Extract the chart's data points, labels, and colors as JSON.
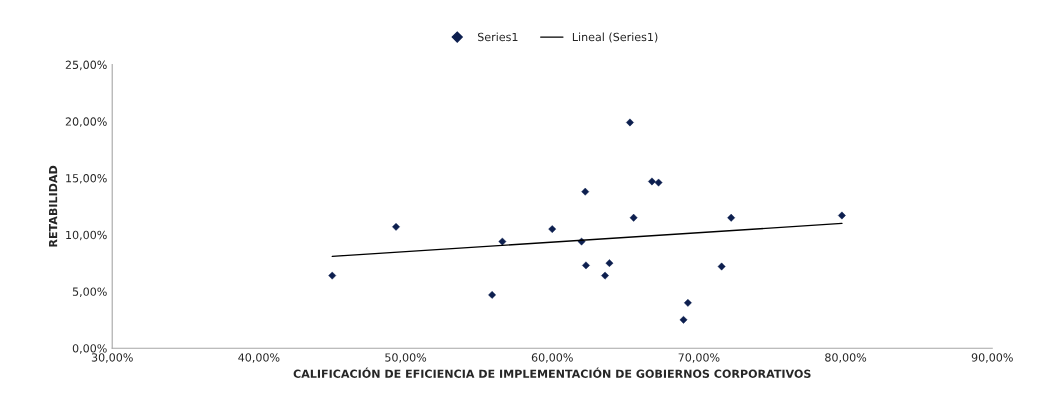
{
  "chart_data": {
    "type": "scatter",
    "xlabel": "CALIFICACIÓN DE EFICIENCIA DE IMPLEMENTACIÓN DE GOBIERNOS CORPORATIVOS",
    "ylabel": "RETABILIDAD",
    "series": [
      {
        "name": "Series1",
        "color": "#0d1f4f",
        "marker": "diamond",
        "x": [
          45.0,
          49.35,
          55.9,
          56.6,
          60.0,
          62.0,
          62.25,
          62.3,
          63.6,
          63.9,
          65.3,
          65.55,
          66.8,
          67.25,
          68.95,
          69.25,
          71.55,
          72.2,
          79.75
        ],
        "values": [
          6.4,
          10.7,
          4.7,
          9.4,
          10.5,
          9.4,
          13.8,
          7.3,
          6.4,
          7.5,
          19.9,
          11.5,
          14.7,
          14.6,
          2.5,
          4.0,
          7.2,
          11.5,
          11.7
        ]
      },
      {
        "name": "Lineal (Series1)",
        "type": "line",
        "color": "#000000",
        "marker": "none",
        "line_style": "solid",
        "x": [
          45.0,
          79.75
        ],
        "values": [
          8.1,
          11.0
        ]
      }
    ],
    "xlim": [
      30,
      90
    ],
    "xticks": [
      {
        "value": 30,
        "label": "30,00%"
      },
      {
        "value": 40,
        "label": "40,00%"
      },
      {
        "value": 50,
        "label": "50,00%"
      },
      {
        "value": 60,
        "label": "60,00%"
      },
      {
        "value": 70,
        "label": "70,00%"
      },
      {
        "value": 80,
        "label": "80,00%"
      },
      {
        "value": 90,
        "label": "90,00%"
      }
    ],
    "ylim": [
      0,
      25
    ],
    "yticks": [
      {
        "value": 0,
        "label": "0,00%"
      },
      {
        "value": 5,
        "label": "5,00%"
      },
      {
        "value": 10,
        "label": "10,00%"
      },
      {
        "value": 15,
        "label": "15,00%"
      },
      {
        "value": 20,
        "label": "20,00%"
      },
      {
        "value": 25,
        "label": "25,00%"
      }
    ],
    "grid": false,
    "legend": "top"
  }
}
